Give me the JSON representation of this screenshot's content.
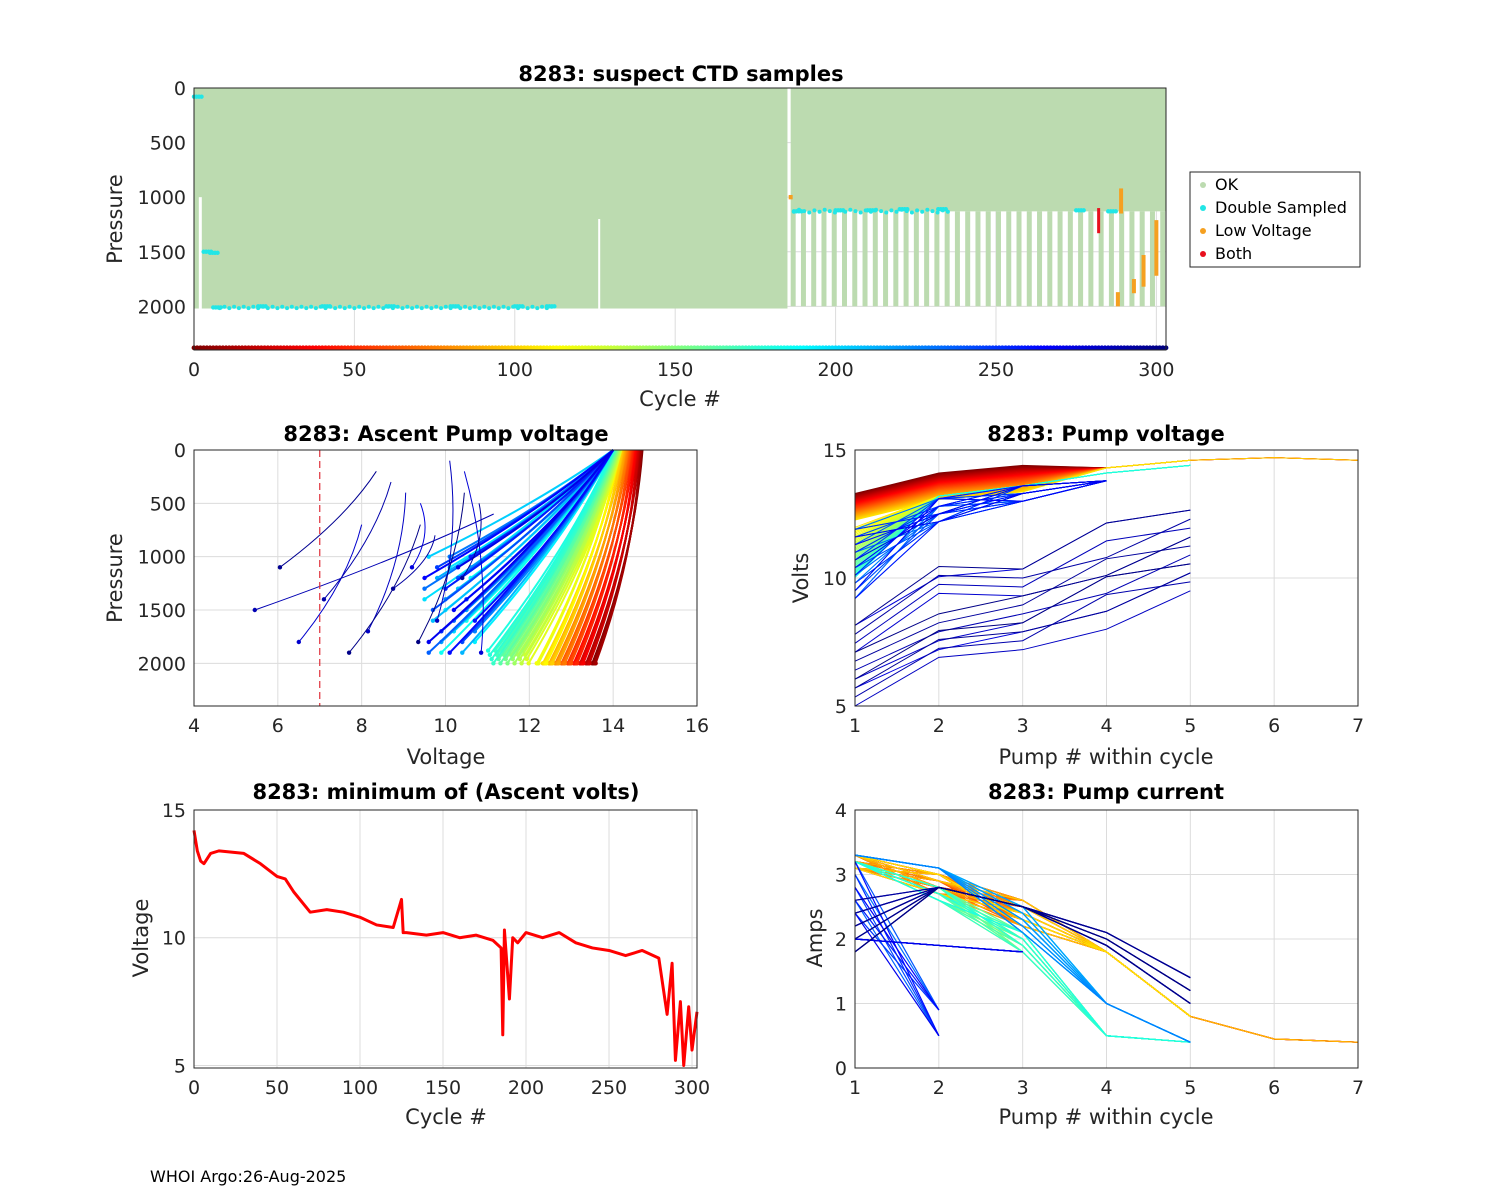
{
  "footer": "WHOI Argo:26-Aug-2025",
  "chart_data": [
    {
      "id": "suspect-ctd",
      "type": "scatter",
      "title": "8283: suspect CTD samples",
      "xlabel": "Cycle #",
      "ylabel": "Pressure",
      "xlim": [
        0,
        303
      ],
      "ylim": [
        2400,
        0
      ],
      "xticks": [
        0,
        50,
        100,
        150,
        200,
        250,
        300
      ],
      "yticks": [
        0,
        500,
        1000,
        1500,
        2000
      ],
      "grid": true,
      "legend": {
        "position": "outside-right",
        "entries": [
          {
            "label": "OK",
            "color": "#bcdbb0"
          },
          {
            "label": "Double Sampled",
            "color": "#22e6e6"
          },
          {
            "label": "Low Voltage",
            "color": "#f5a020"
          },
          {
            "label": "Both",
            "color": "#e8101e"
          }
        ]
      },
      "ok_profiles": {
        "deep_cycles": [
          0,
          185
        ],
        "deep_max_pressure": 2020,
        "park_cycles": [
          186,
          303
        ],
        "park_max_pressure": 2000,
        "park_pressure": 1130
      },
      "double_sampled_points": [
        {
          "cycle": 0,
          "pressure": 80
        },
        {
          "cycle": 3,
          "pressure": 1500
        },
        {
          "cycle": 5,
          "pressure": 1510
        },
        {
          "cycle": 6,
          "pressure": 2010
        },
        {
          "cycle": 20,
          "pressure": 2000
        },
        {
          "cycle": 40,
          "pressure": 2000
        },
        {
          "cycle": 60,
          "pressure": 2000
        },
        {
          "cycle": 80,
          "pressure": 2000
        },
        {
          "cycle": 100,
          "pressure": 2000
        },
        {
          "cycle": 110,
          "pressure": 2000
        },
        {
          "cycle": 187,
          "pressure": 1130
        },
        {
          "cycle": 200,
          "pressure": 1120
        },
        {
          "cycle": 210,
          "pressure": 1120
        },
        {
          "cycle": 220,
          "pressure": 1110
        },
        {
          "cycle": 232,
          "pressure": 1110
        },
        {
          "cycle": 275,
          "pressure": 1120
        },
        {
          "cycle": 285,
          "pressure": 1130
        }
      ],
      "low_voltage_segments": [
        {
          "cycle": 186,
          "p_top": 980,
          "p_bottom": 1020
        },
        {
          "cycle": 288,
          "p_top": 1870,
          "p_bottom": 2000
        },
        {
          "cycle": 289,
          "p_top": 920,
          "p_bottom": 1150
        },
        {
          "cycle": 293,
          "p_top": 1750,
          "p_bottom": 1880
        },
        {
          "cycle": 296,
          "p_top": 1530,
          "p_bottom": 1820
        },
        {
          "cycle": 300,
          "p_top": 1210,
          "p_bottom": 1720
        }
      ],
      "both_segments": [
        {
          "cycle": 282,
          "p_top": 1100,
          "p_bottom": 1330
        }
      ],
      "cycle_colorbar": "jet-reversed"
    },
    {
      "id": "ascent-pump-voltage",
      "type": "line",
      "title": "8283: Ascent Pump voltage",
      "xlabel": "Voltage",
      "ylabel": "Pressure",
      "xlim": [
        4,
        16
      ],
      "ylim": [
        2400,
        0
      ],
      "xticks": [
        4,
        6,
        8,
        10,
        12,
        14,
        16
      ],
      "yticks": [
        0,
        500,
        1000,
        1500,
        2000
      ],
      "grid": true,
      "threshold_line": {
        "x": 7,
        "style": "dashed",
        "color": "#e0303a"
      },
      "series_summary": [
        {
          "cycle_range": "early (red)",
          "from": [
            13.3,
            2000
          ],
          "to": [
            14.7,
            0
          ]
        },
        {
          "cycle_range": "mid (yellow-green)",
          "from": [
            12.0,
            2000
          ],
          "to": [
            14.2,
            0
          ]
        },
        {
          "cycle_range": "late (blue)",
          "from": [
            10.0,
            2000
          ],
          "to": [
            14.0,
            0
          ]
        },
        {
          "cycle_range": "park late (blue)",
          "from": [
            9.5,
            1100
          ],
          "to": [
            14.0,
            0
          ]
        },
        {
          "cycle_range": "final (navy)",
          "from": [
            5.0,
            1870
          ],
          "to": [
            11.1,
            80
          ]
        }
      ]
    },
    {
      "id": "pump-voltage",
      "type": "line",
      "title": "8283: Pump voltage",
      "xlabel": "Pump # within cycle",
      "ylabel": "Volts",
      "xlim": [
        1,
        7
      ],
      "ylim": [
        5,
        15
      ],
      "xticks": [
        1,
        2,
        3,
        4,
        5,
        6,
        7
      ],
      "yticks": [
        5,
        10,
        15
      ],
      "grid": true,
      "series_summary": [
        {
          "group": "early (red)",
          "points": [
            [
              1,
              13.3
            ],
            [
              2,
              14.0
            ],
            [
              3,
              14.5
            ],
            [
              4,
              14.6
            ],
            [
              5,
              14.7
            ],
            [
              6,
              14.7
            ],
            [
              7,
              14.6
            ]
          ]
        },
        {
          "group": "mid (orange/yellow)",
          "points": [
            [
              1,
              12.0
            ],
            [
              2,
              13.5
            ],
            [
              3,
              13.8
            ],
            [
              4,
              14.2
            ],
            [
              5,
              14.5
            ]
          ]
        },
        {
          "group": "late (blue)",
          "points": [
            [
              1,
              9.5
            ],
            [
              2,
              12.0
            ],
            [
              3,
              13.0
            ],
            [
              4,
              13.8
            ],
            [
              5,
              14.3
            ]
          ]
        },
        {
          "group": "final (navy)",
          "points": [
            [
              1,
              5.0
            ],
            [
              2,
              7.5
            ],
            [
              3,
              8.2
            ],
            [
              4,
              9.4
            ],
            [
              5,
              12.0
            ]
          ]
        }
      ]
    },
    {
      "id": "min-ascent-volts",
      "type": "line",
      "title": "8283: minimum of (Ascent volts)",
      "xlabel": "Cycle #",
      "ylabel": "Voltage",
      "xlim": [
        0,
        303
      ],
      "ylim": [
        4.9,
        15
      ],
      "xticks": [
        0,
        50,
        100,
        150,
        200,
        250,
        300
      ],
      "yticks": [
        5,
        10,
        15
      ],
      "grid": true,
      "color": "#ff0000",
      "x": [
        0,
        2,
        4,
        6,
        10,
        15,
        30,
        40,
        50,
        55,
        60,
        70,
        80,
        90,
        100,
        110,
        120,
        125,
        126,
        128,
        140,
        150,
        160,
        170,
        180,
        185,
        186,
        187,
        190,
        192,
        195,
        200,
        210,
        220,
        230,
        240,
        250,
        260,
        270,
        280,
        285,
        288,
        290,
        293,
        295,
        298,
        300,
        303
      ],
      "y": [
        14.2,
        13.4,
        13.0,
        12.9,
        13.3,
        13.4,
        13.3,
        12.9,
        12.4,
        12.3,
        11.8,
        11.0,
        11.1,
        11.0,
        10.8,
        10.5,
        10.4,
        11.5,
        10.2,
        10.2,
        10.1,
        10.2,
        10.0,
        10.1,
        9.9,
        9.6,
        6.2,
        10.3,
        7.6,
        10.0,
        9.8,
        10.2,
        10.0,
        10.2,
        9.8,
        9.6,
        9.5,
        9.3,
        9.5,
        9.2,
        7.0,
        9.0,
        5.2,
        7.5,
        5.0,
        7.3,
        5.6,
        7.1
      ]
    },
    {
      "id": "pump-current",
      "type": "line",
      "title": "8283: Pump current",
      "xlabel": "Pump # within cycle",
      "ylabel": "Amps",
      "xlim": [
        1,
        7
      ],
      "ylim": [
        0,
        4
      ],
      "xticks": [
        1,
        2,
        3,
        4,
        5,
        6,
        7
      ],
      "yticks": [
        0,
        1,
        2,
        3,
        4
      ],
      "grid": true,
      "series_summary": [
        {
          "group": "early (red)",
          "points": [
            [
              1,
              3.3
            ],
            [
              2,
              3.1
            ],
            [
              3,
              2.8
            ],
            [
              4,
              1.8
            ],
            [
              5,
              0.8
            ],
            [
              6,
              0.45
            ],
            [
              7,
              0.4
            ]
          ]
        },
        {
          "group": "mid (yellow-green)",
          "points": [
            [
              1,
              3.2
            ],
            [
              2,
              2.8
            ],
            [
              3,
              1.8
            ],
            [
              4,
              0.5
            ],
            [
              5,
              0.4
            ],
            [
              6,
              0.38
            ]
          ]
        },
        {
          "group": "cyan",
          "points": [
            [
              1,
              3.3
            ],
            [
              2,
              3.1
            ],
            [
              3,
              2.5
            ],
            [
              4,
              1.0
            ],
            [
              5,
              0.4
            ]
          ]
        },
        {
          "group": "late (blue)",
          "points": [
            [
              1,
              2.0
            ],
            [
              2,
              1.9
            ],
            [
              3,
              1.8
            ]
          ]
        },
        {
          "group": "late steep (blue)",
          "points": [
            [
              1,
              3.2
            ],
            [
              2,
              0.5
            ]
          ]
        }
      ]
    }
  ]
}
